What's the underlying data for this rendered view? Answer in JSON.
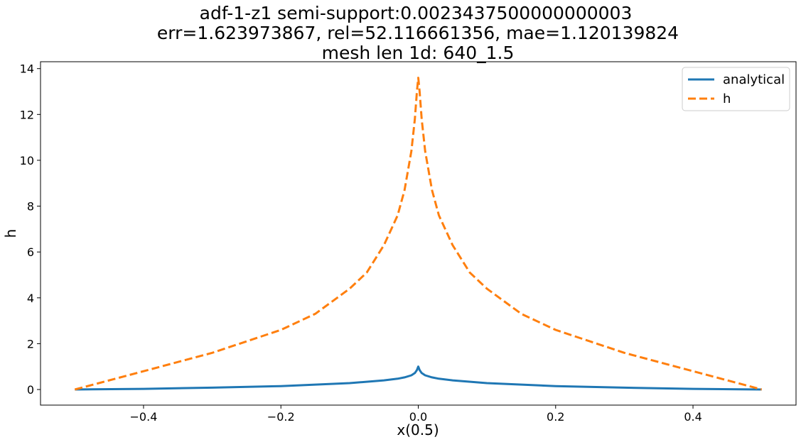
{
  "chart_data": {
    "type": "line",
    "title": [
      "adf-1-z1  semi-support:0.0023437500000000003",
      "err=1.623973867, rel=52.116661356, mae=1.120139824",
      "mesh len 1d: 640_1.5"
    ],
    "xlabel": "x(0.5)",
    "ylabel": "h",
    "xlim": [
      -0.55,
      0.55
    ],
    "ylim": [
      -0.68,
      14.3
    ],
    "xticks": [
      -0.4,
      -0.2,
      0.0,
      0.2,
      0.4
    ],
    "xtick_labels": [
      "−0.4",
      "−0.2",
      "0.0",
      "0.2",
      "0.4"
    ],
    "yticks": [
      0,
      2,
      4,
      6,
      8,
      10,
      12,
      14
    ],
    "ytick_labels": [
      "0",
      "2",
      "4",
      "6",
      "8",
      "10",
      "12",
      "14"
    ],
    "grid": false,
    "legend_position": "top-right",
    "series": [
      {
        "name": "analytical",
        "color": "#1f77b4",
        "style": "solid",
        "x": [
          -0.5,
          -0.4,
          -0.3,
          -0.2,
          -0.1,
          -0.05,
          -0.03,
          -0.02,
          -0.01,
          -0.005,
          -0.002,
          0.0,
          0.002,
          0.005,
          0.01,
          0.02,
          0.03,
          0.05,
          0.1,
          0.2,
          0.3,
          0.4,
          0.5
        ],
        "y": [
          0.0,
          0.03,
          0.08,
          0.15,
          0.28,
          0.4,
          0.47,
          0.53,
          0.62,
          0.72,
          0.85,
          1.0,
          0.85,
          0.72,
          0.62,
          0.53,
          0.47,
          0.4,
          0.28,
          0.15,
          0.08,
          0.03,
          0.0
        ]
      },
      {
        "name": "h",
        "color": "#ff7f0e",
        "style": "dashed",
        "x": [
          -0.5,
          -0.4,
          -0.3,
          -0.2,
          -0.15,
          -0.1,
          -0.075,
          -0.05,
          -0.03,
          -0.02,
          -0.01,
          -0.005,
          -0.002,
          0.0,
          0.002,
          0.005,
          0.01,
          0.02,
          0.03,
          0.05,
          0.075,
          0.1,
          0.15,
          0.2,
          0.3,
          0.4,
          0.5
        ],
        "y": [
          0.0,
          0.8,
          1.6,
          2.6,
          3.3,
          4.4,
          5.1,
          6.3,
          7.6,
          8.7,
          10.4,
          11.8,
          13.0,
          13.6,
          13.0,
          11.8,
          10.4,
          8.7,
          7.6,
          6.3,
          5.1,
          4.4,
          3.3,
          2.6,
          1.6,
          0.8,
          0.0
        ]
      }
    ]
  }
}
